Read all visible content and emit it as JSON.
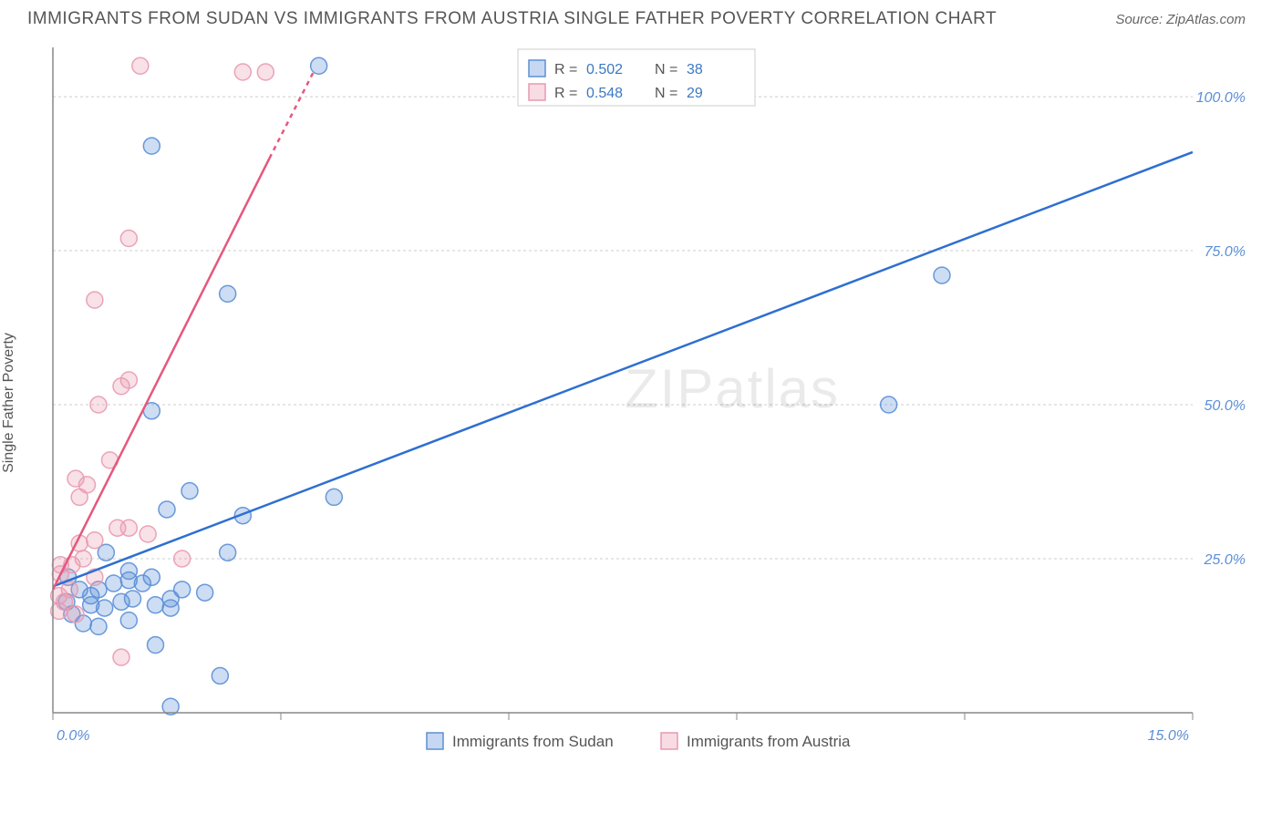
{
  "title": "IMMIGRANTS FROM SUDAN VS IMMIGRANTS FROM AUSTRIA SINGLE FATHER POVERTY CORRELATION CHART",
  "source_label": "Source: ZipAtlas.com",
  "y_axis_label": "Single Father Poverty",
  "watermark": "ZIPatlas",
  "chart": {
    "type": "scatter",
    "background_color": "#ffffff",
    "grid_color": "#cccccc",
    "axis_color": "#888888",
    "xlim": [
      0,
      15
    ],
    "ylim": [
      0,
      108
    ],
    "xticks": [
      0,
      3,
      6,
      9,
      12,
      15
    ],
    "xtick_labels": {
      "0": "0.0%",
      "15": "15.0%"
    },
    "yticks": [
      25,
      50,
      75,
      100
    ],
    "ytick_labels": {
      "25": "25.0%",
      "50": "50.0%",
      "75": "75.0%",
      "100": "100.0%"
    },
    "marker_radius": 9,
    "marker_fill_opacity": 0.3,
    "marker_stroke_opacity": 0.9,
    "line_width": 2.5,
    "series": [
      {
        "name": "Immigrants from Sudan",
        "color": "#5b8fd6",
        "line_color": "#2e6fd1",
        "r_value": "0.502",
        "n_value": "38",
        "points": [
          [
            3.5,
            105
          ],
          [
            1.3,
            92
          ],
          [
            2.3,
            68
          ],
          [
            11.7,
            71
          ],
          [
            11.0,
            50
          ],
          [
            1.3,
            49
          ],
          [
            3.7,
            35
          ],
          [
            2.5,
            32
          ],
          [
            1.8,
            36
          ],
          [
            1.5,
            33
          ],
          [
            2.3,
            26
          ],
          [
            0.7,
            26
          ],
          [
            0.2,
            22
          ],
          [
            0.35,
            20
          ],
          [
            0.5,
            19
          ],
          [
            0.6,
            20
          ],
          [
            0.8,
            21
          ],
          [
            1.0,
            21.5
          ],
          [
            1.18,
            21
          ],
          [
            1.3,
            22
          ],
          [
            0.5,
            17.5
          ],
          [
            0.68,
            17
          ],
          [
            0.9,
            18
          ],
          [
            1.05,
            18.5
          ],
          [
            1.35,
            17.5
          ],
          [
            1.55,
            18.5
          ],
          [
            1.55,
            17
          ],
          [
            1.7,
            20
          ],
          [
            2.0,
            19.5
          ],
          [
            1.0,
            15
          ],
          [
            0.6,
            14
          ],
          [
            0.4,
            14.5
          ],
          [
            0.25,
            16
          ],
          [
            1.35,
            11
          ],
          [
            2.2,
            6
          ],
          [
            1.55,
            1
          ],
          [
            1.0,
            23
          ],
          [
            0.18,
            18
          ]
        ],
        "trend": {
          "x1": 0.0,
          "y1": 20.5,
          "x2": 15.0,
          "y2": 91.0
        }
      },
      {
        "name": "Immigrants from Austria",
        "color": "#e99ab0",
        "line_color": "#e5577e",
        "r_value": "0.548",
        "n_value": "29",
        "points": [
          [
            1.15,
            105
          ],
          [
            2.5,
            104
          ],
          [
            2.8,
            104
          ],
          [
            1.0,
            77
          ],
          [
            0.55,
            67
          ],
          [
            0.9,
            53
          ],
          [
            1.0,
            54
          ],
          [
            0.6,
            50
          ],
          [
            0.75,
            41
          ],
          [
            0.3,
            38
          ],
          [
            0.45,
            37
          ],
          [
            0.35,
            35
          ],
          [
            0.85,
            30
          ],
          [
            1.0,
            30
          ],
          [
            1.25,
            29
          ],
          [
            0.35,
            27.5
          ],
          [
            0.55,
            28
          ],
          [
            0.4,
            25
          ],
          [
            1.7,
            25
          ],
          [
            0.1,
            24
          ],
          [
            0.25,
            24
          ],
          [
            0.55,
            22
          ],
          [
            0.1,
            22.5
          ],
          [
            0.22,
            20
          ],
          [
            0.08,
            19
          ],
          [
            0.15,
            18
          ],
          [
            0.08,
            16.5
          ],
          [
            0.3,
            16
          ],
          [
            0.9,
            9
          ]
        ],
        "trend": {
          "x1": 0.0,
          "y1": 20.0,
          "x2": 2.85,
          "y2": 90.0
        },
        "trend_dash": {
          "x1": 2.85,
          "y1": 90.0,
          "x2": 3.45,
          "y2": 104.5
        }
      }
    ],
    "legend_top": {
      "r_label": "R =",
      "n_label": "N ="
    },
    "legend_bottom_swatch_size": 18
  }
}
